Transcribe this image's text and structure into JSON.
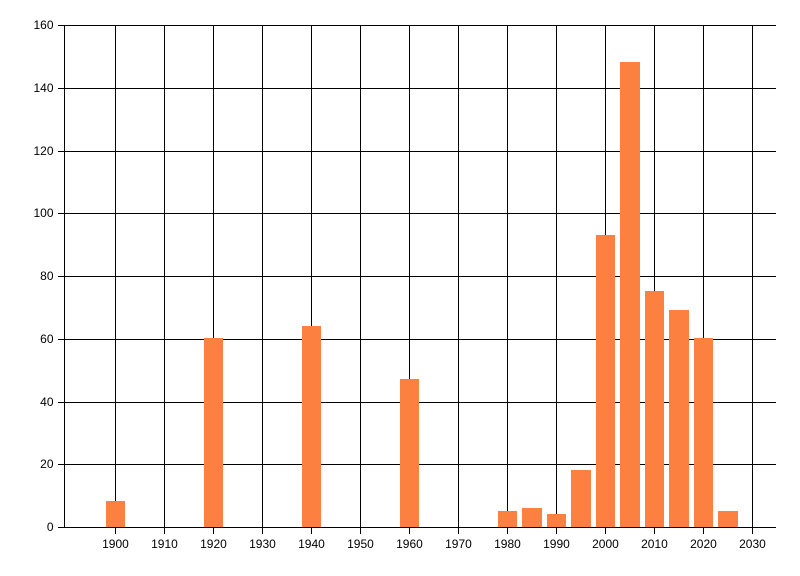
{
  "chart_data": {
    "type": "bar",
    "title": "",
    "xlabel": "",
    "ylabel": "",
    "x": [
      1900,
      1920,
      1940,
      1960,
      1980,
      1985,
      1990,
      1995,
      2000,
      2005,
      2010,
      2015,
      2020,
      2025
    ],
    "values": [
      8,
      60,
      64,
      47,
      5,
      6,
      4,
      18,
      93,
      148,
      75,
      69,
      60,
      5
    ],
    "x_ticks": [
      1900,
      1910,
      1920,
      1930,
      1940,
      1950,
      1960,
      1970,
      1980,
      1990,
      2000,
      2010,
      2020,
      2030
    ],
    "y_ticks": [
      0,
      20,
      40,
      60,
      80,
      100,
      120,
      140,
      160
    ],
    "xlim": [
      1889.6,
      2034.9
    ],
    "ylim": [
      0,
      160
    ],
    "grid": true,
    "legend": false,
    "bar_width_years": 4,
    "bar_color": "#FC8140",
    "axis_color": "#000000",
    "background_color": "#FFFFFF",
    "label_color": "#000000"
  }
}
